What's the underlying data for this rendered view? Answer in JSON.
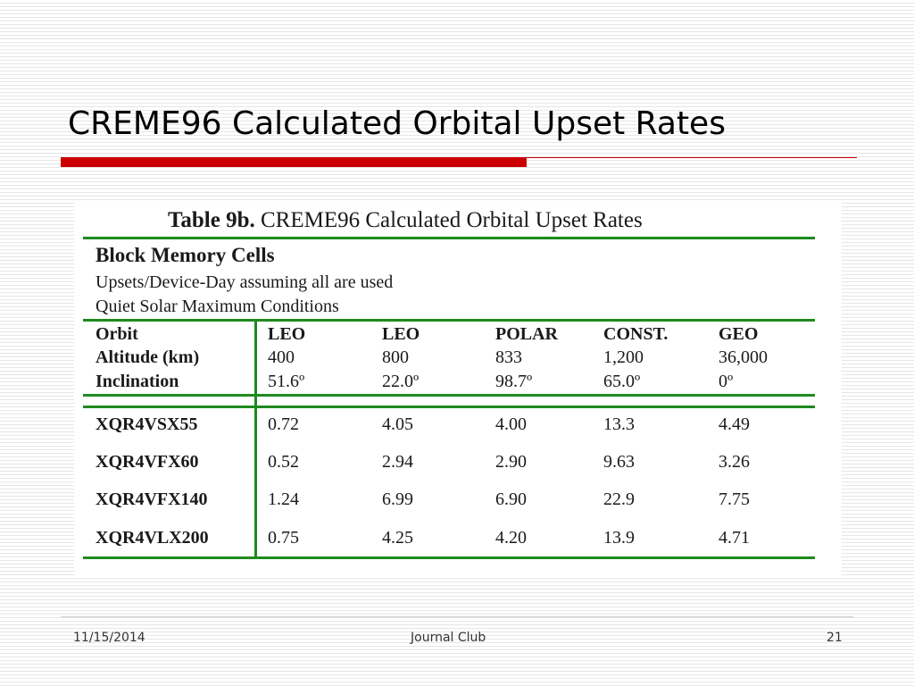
{
  "slide": {
    "title": "CREME96 Calculated Orbital Upset Rates",
    "accent_color": "#cc0000"
  },
  "table": {
    "caption_bold": "Table 9b.",
    "caption_rest": " CREME96 Calculated Orbital Upset Rates",
    "section_title": "Block Memory Cells",
    "notes": [
      "Upsets/Device-Day assuming all are used",
      "Quiet Solar Maximum Conditions"
    ],
    "line_color": "#1e8a1e",
    "header_labels": [
      "Orbit",
      "Altitude (km)",
      "Inclination"
    ],
    "columns": [
      {
        "orbit": "LEO",
        "altitude": "400",
        "inclination": "51.6º"
      },
      {
        "orbit": "LEO",
        "altitude": "800",
        "inclination": "22.0º"
      },
      {
        "orbit": "POLAR",
        "altitude": "833",
        "inclination": "98.7º"
      },
      {
        "orbit": "CONST.",
        "altitude": "1,200",
        "inclination": "65.0º"
      },
      {
        "orbit": "GEO",
        "altitude": "36,000",
        "inclination": "0º"
      }
    ],
    "rows": [
      {
        "device": "XQR4VSX55",
        "values": [
          "0.72",
          "4.05",
          "4.00",
          "13.3",
          "4.49"
        ]
      },
      {
        "device": "XQR4VFX60",
        "values": [
          "0.52",
          "2.94",
          "2.90",
          "9.63",
          "3.26"
        ]
      },
      {
        "device": "XQR4VFX140",
        "values": [
          "1.24",
          "6.99",
          "6.90",
          "22.9",
          "7.75"
        ]
      },
      {
        "device": "XQR4VLX200",
        "values": [
          "0.75",
          "4.25",
          "4.20",
          "13.9",
          "4.71"
        ]
      }
    ]
  },
  "footer": {
    "date": "11/15/2014",
    "center": "Journal Club",
    "page": "21"
  }
}
